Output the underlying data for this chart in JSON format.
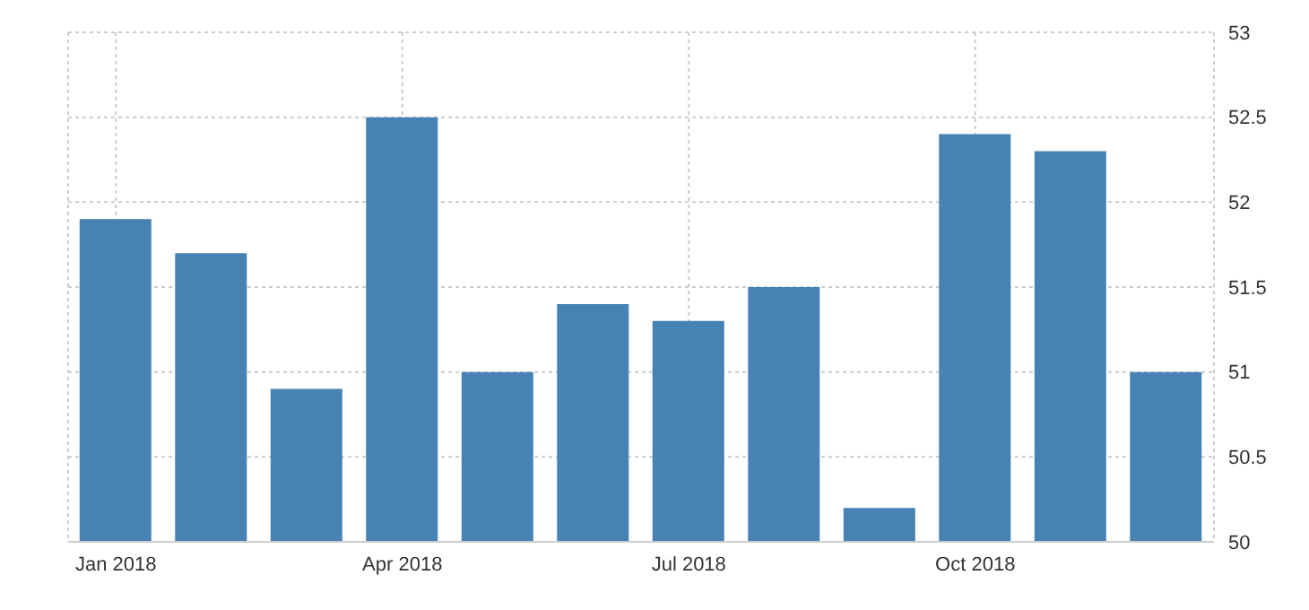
{
  "chart_data": {
    "type": "bar",
    "categories": [
      "Jan 2018",
      null,
      null,
      "Apr 2018",
      null,
      null,
      "Jul 2018",
      null,
      null,
      "Oct 2018",
      null,
      null
    ],
    "values": [
      51.9,
      51.7,
      50.9,
      52.5,
      51.0,
      51.4,
      51.3,
      51.5,
      50.2,
      52.4,
      52.3,
      51.0
    ],
    "color": "#4682b4",
    "ylim": [
      50,
      53
    ],
    "yticks": [
      50,
      50.5,
      51,
      51.5,
      52,
      52.5,
      53
    ],
    "grid": true,
    "legend": false
  }
}
